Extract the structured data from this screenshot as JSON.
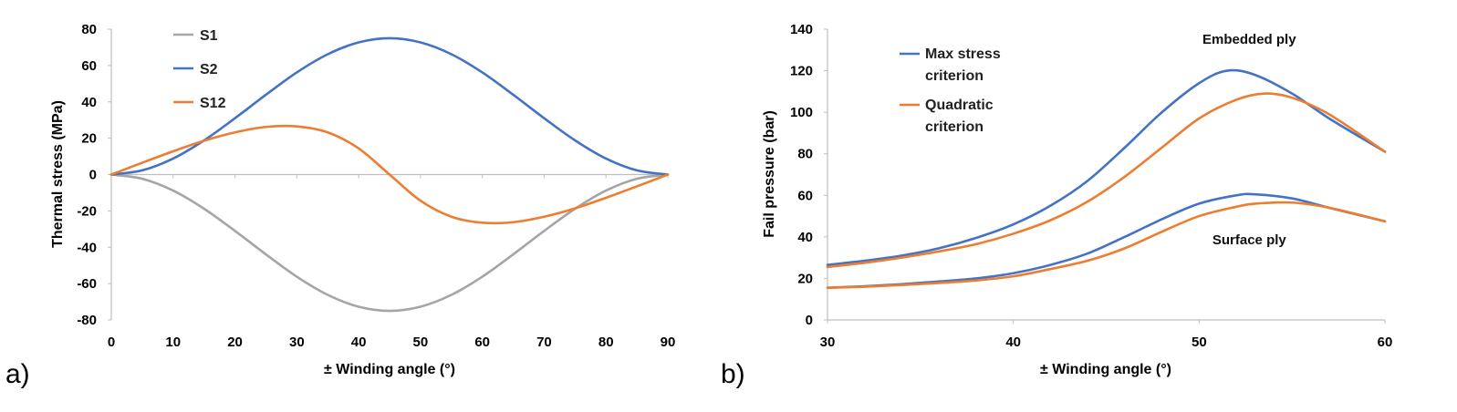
{
  "chart_data": [
    {
      "type": "line",
      "panel_label": "a)",
      "title": "",
      "xlabel": "± Winding angle (°)",
      "ylabel": "Thermal stress (MPa)",
      "xlim": [
        0,
        90
      ],
      "ylim": [
        -80,
        80
      ],
      "xticks": [
        0,
        10,
        20,
        30,
        40,
        50,
        60,
        70,
        80,
        90
      ],
      "yticks": [
        -80,
        -60,
        -40,
        -20,
        0,
        20,
        40,
        60,
        80
      ],
      "grid": false,
      "legend_position": "top-left",
      "series": [
        {
          "name": "S1",
          "color": "#a5a5a5",
          "x": [
            0,
            5,
            10,
            15,
            20,
            25,
            30,
            35,
            40,
            45,
            50,
            55,
            60,
            65,
            70,
            75,
            80,
            85,
            90
          ],
          "y": [
            0,
            -2.3,
            -8.8,
            -18.8,
            -31.0,
            -43.9,
            -56.2,
            -66.2,
            -72.7,
            -75.0,
            -72.7,
            -66.2,
            -56.2,
            -43.9,
            -31.0,
            -18.8,
            -8.8,
            -2.3,
            0
          ]
        },
        {
          "name": "S2",
          "color": "#4472c4",
          "x": [
            0,
            5,
            10,
            15,
            20,
            25,
            30,
            35,
            40,
            45,
            50,
            55,
            60,
            65,
            70,
            75,
            80,
            85,
            90
          ],
          "y": [
            0,
            2.3,
            8.8,
            18.8,
            31.0,
            43.9,
            56.2,
            66.2,
            72.7,
            75.0,
            72.7,
            66.2,
            56.2,
            43.9,
            31.0,
            18.8,
            8.8,
            2.3,
            0
          ]
        },
        {
          "name": "S12",
          "color": "#ed7d31",
          "x": [
            0,
            5,
            10,
            15,
            20,
            25,
            30,
            35,
            40,
            45,
            50,
            55,
            60,
            65,
            70,
            75,
            80,
            85,
            90
          ],
          "y": [
            0,
            6.5,
            12.8,
            18.6,
            23.2,
            26.2,
            26.5,
            23.2,
            14.4,
            0,
            -14.4,
            -23.2,
            -26.5,
            -26.2,
            -23.2,
            -18.6,
            -12.8,
            -6.5,
            0
          ]
        }
      ]
    },
    {
      "type": "line",
      "panel_label": "b)",
      "title": "",
      "xlabel": "± Winding angle (°)",
      "ylabel": "Fail pressure (bar)",
      "xlim": [
        30,
        60
      ],
      "ylim": [
        0,
        140
      ],
      "xticks": [
        30,
        40,
        50,
        60
      ],
      "yticks": [
        0,
        20,
        40,
        60,
        80,
        100,
        120,
        140
      ],
      "grid": false,
      "legend_position": "top-left",
      "legend": [
        {
          "name": [
            "Max stress",
            "criterion"
          ],
          "color": "#4472c4"
        },
        {
          "name": [
            "Quadratic",
            "criterion"
          ],
          "color": "#ed7d31"
        }
      ],
      "annotations": [
        {
          "text": "Embedded ply",
          "x": 52.7,
          "y": 133
        },
        {
          "text": "Surface ply",
          "x": 52.7,
          "y": 36.5
        }
      ],
      "series": [
        {
          "name": "Max stress criterion (embedded ply)",
          "color": "#4472c4",
          "x": [
            30,
            32,
            34,
            36,
            38,
            40,
            42,
            44,
            46,
            48,
            50,
            51.5,
            53,
            55,
            57,
            60
          ],
          "y": [
            26.5,
            28.5,
            31,
            34.5,
            39.5,
            46,
            55,
            67,
            83,
            100,
            114,
            120,
            118,
            109,
            97,
            81
          ]
        },
        {
          "name": "Quadratic criterion (embedded ply)",
          "color": "#ed7d31",
          "x": [
            30,
            32,
            34,
            36,
            38,
            40,
            42,
            44,
            46,
            48,
            50,
            52,
            53.5,
            55,
            57,
            60
          ],
          "y": [
            25.5,
            27.5,
            30,
            33,
            36.5,
            41.5,
            48,
            57,
            69,
            83,
            97,
            106,
            109,
            107,
            99,
            81
          ]
        },
        {
          "name": "Max stress criterion (surface ply)",
          "color": "#4472c4",
          "x": [
            30,
            32,
            34,
            36,
            38,
            40,
            42,
            44,
            46,
            48,
            50,
            52,
            53,
            55,
            57,
            60
          ],
          "y": [
            15.5,
            16.2,
            17.2,
            18.5,
            20,
            22.5,
            26.5,
            32,
            40,
            48.5,
            56,
            60,
            60.5,
            58.5,
            54,
            47.5
          ]
        },
        {
          "name": "Quadratic criterion (surface ply)",
          "color": "#ed7d31",
          "x": [
            30,
            32,
            34,
            36,
            38,
            40,
            42,
            44,
            46,
            48,
            50,
            52,
            53,
            55,
            57,
            60
          ],
          "y": [
            15.5,
            16,
            16.8,
            17.8,
            19,
            21,
            24.5,
            28.5,
            34.5,
            42.5,
            50,
            54.5,
            56,
            56.5,
            54,
            47.5
          ]
        }
      ]
    }
  ]
}
